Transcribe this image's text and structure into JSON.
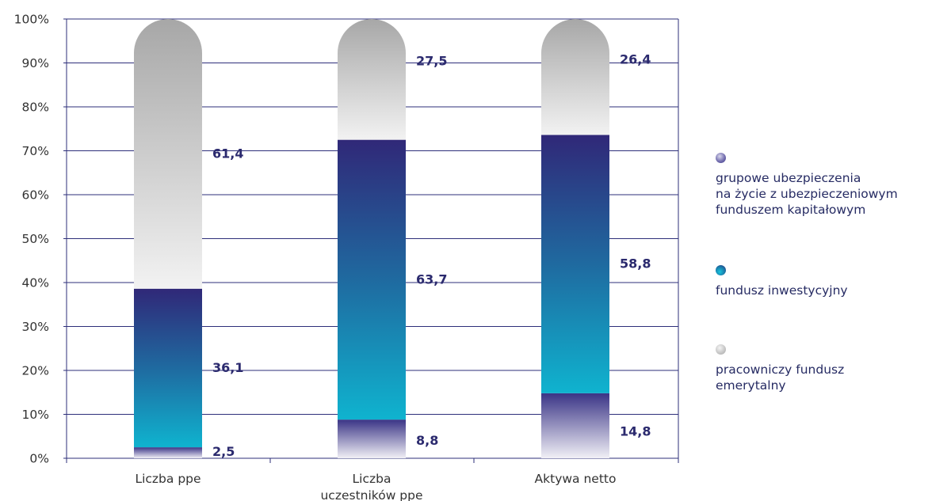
{
  "chart_data": {
    "type": "bar",
    "stacked": true,
    "percent_stacked": true,
    "categories": [
      "Liczba  ppe",
      "Liczba\nuczestników ppe",
      "Aktywa netto"
    ],
    "series": [
      {
        "name": "grupowe ubezpieczenia\nna życie z ubezpieczeniowym\nfunduszem kapitałowym",
        "values": [
          2.5,
          8.8,
          14.8
        ],
        "value_labels": [
          "2,5",
          "8,8",
          "14,8"
        ]
      },
      {
        "name": "fundusz inwestycyjny",
        "values": [
          36.1,
          63.7,
          58.8
        ],
        "value_labels": [
          "36,1",
          "63,7",
          "58,8"
        ]
      },
      {
        "name": "pracowniczy fundusz\nemerytalny",
        "values": [
          61.4,
          27.5,
          26.4
        ],
        "value_labels": [
          "61,4",
          "27,5",
          "26,4"
        ]
      }
    ],
    "ylim": [
      0,
      100
    ],
    "yticks": [
      "0%",
      "10%",
      "20%",
      "30%",
      "40%",
      "50%",
      "60%",
      "70%",
      "80%",
      "90%",
      "100%"
    ],
    "grid": true,
    "legend_position": "right",
    "colors": {
      "grid": "#2e2f7a",
      "value_label": "#2b2a6e",
      "axis_text": "#333333",
      "group_top": "#3a3486",
      "group_bottom": "#f1f0f6",
      "fund_top": "#302878",
      "fund_bottom": "#0fb3cf",
      "pension_top": "#a7a7a7",
      "pension_bottom": "#f2f2f2"
    }
  },
  "legend": {
    "items": [
      {
        "icon": "circle-purple-gradient",
        "label": "grupowe ubezpieczenia\nna życie z ubezpieczeniowym\nfunduszem kapitałowym"
      },
      {
        "icon": "circle-teal-gradient",
        "label": "fundusz inwestycyjny"
      },
      {
        "icon": "circle-grey-gradient",
        "label": "pracowniczy fundusz\nemerytalny"
      }
    ]
  }
}
